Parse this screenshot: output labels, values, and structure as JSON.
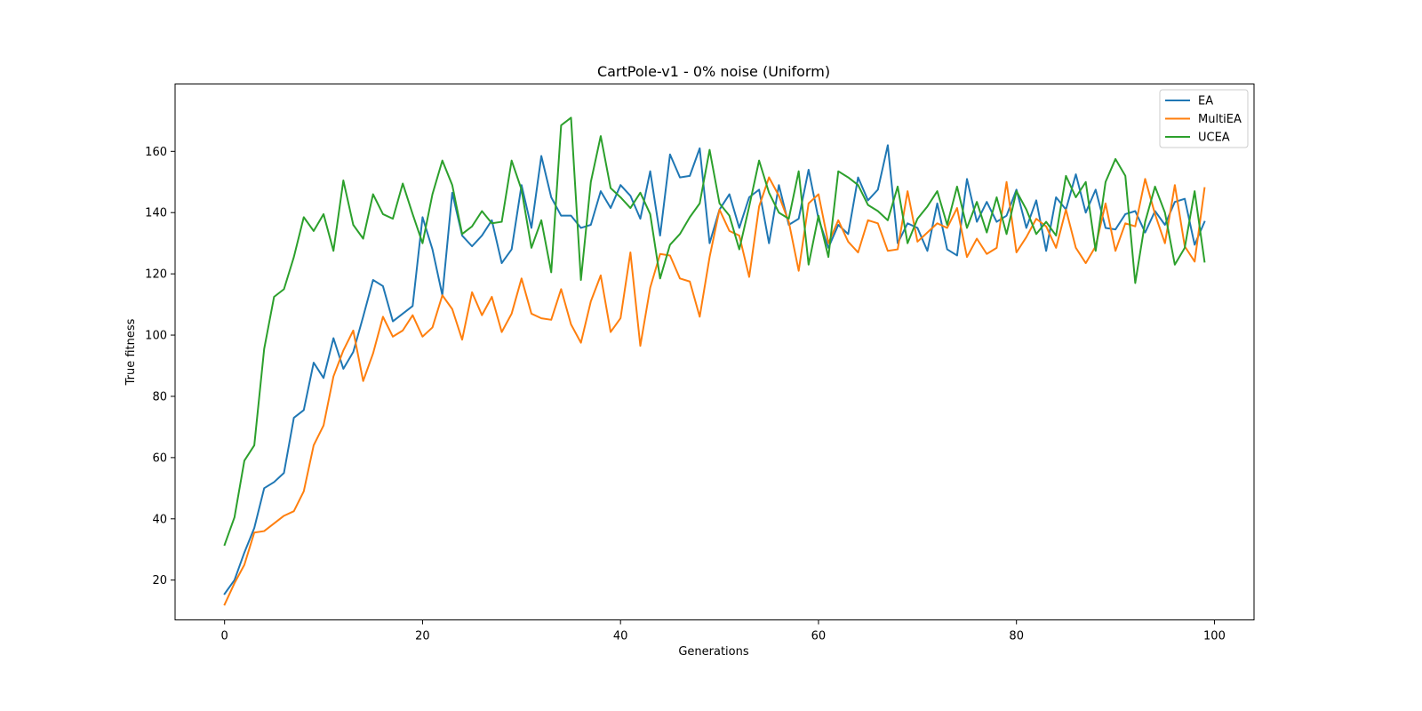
{
  "chart_data": {
    "type": "line",
    "title": "CartPole-v1 - 0% noise (Uniform)",
    "xlabel": "Generations",
    "ylabel": "True fitness",
    "xlim": [
      -5,
      104
    ],
    "ylim": [
      7,
      182
    ],
    "xticks": [
      0,
      20,
      40,
      60,
      80,
      100
    ],
    "yticks": [
      20,
      40,
      60,
      80,
      100,
      120,
      140,
      160
    ],
    "grid": false,
    "legend_position": "top-right",
    "series": [
      {
        "name": "EA",
        "color": "#1f77b4",
        "values": [
          15.5,
          20,
          29,
          37,
          50,
          52,
          55,
          73,
          75.5,
          91,
          86,
          99,
          89,
          94.5,
          106,
          118,
          116,
          104.5,
          107,
          109.5,
          138.5,
          128,
          113,
          146.5,
          132.5,
          129,
          132.5,
          137.5,
          123.5,
          128,
          149,
          135,
          158.5,
          145,
          139,
          139,
          135,
          136,
          147,
          141.5,
          149,
          145.5,
          138,
          153.5,
          132.5,
          159,
          151.5,
          152,
          161,
          130,
          141,
          146,
          135,
          145,
          147.5,
          130,
          149,
          136,
          138,
          154,
          138,
          128.5,
          136,
          133,
          151.5,
          144,
          147.5,
          162,
          130,
          136.5,
          135,
          127.5,
          143,
          128,
          126,
          151,
          137,
          143.5,
          137,
          139,
          147.5,
          135,
          144,
          127.5,
          145,
          141,
          152.5,
          140,
          147.5,
          135,
          134.5,
          139.5,
          140.5,
          133.5,
          140.5,
          136,
          143.5,
          144.5,
          129.5,
          137
        ]
      },
      {
        "name": "MultiEA",
        "color": "#ff7f0e",
        "values": [
          12,
          19,
          25,
          35.5,
          36,
          38.5,
          41,
          42.5,
          49,
          64,
          70.5,
          86.5,
          95,
          101.5,
          85,
          94,
          106,
          99.5,
          101.5,
          106.5,
          99.5,
          102.5,
          113,
          108.5,
          98.5,
          114,
          106.5,
          112.5,
          101,
          107,
          118.5,
          107,
          105.5,
          105,
          115,
          103.5,
          97.5,
          111,
          119.5,
          101,
          105.5,
          127,
          96.5,
          115.5,
          126.5,
          126,
          118.5,
          117.5,
          106,
          125.5,
          141,
          134,
          132.5,
          119,
          142,
          151.5,
          145.5,
          137,
          121,
          143,
          146,
          130,
          137.5,
          130.5,
          127,
          137.5,
          136.5,
          127.5,
          128,
          147,
          130.5,
          133.5,
          136.5,
          135,
          141.5,
          125.5,
          131.5,
          126.5,
          128.5,
          150,
          127,
          132,
          138,
          135.5,
          128.5,
          141,
          128.5,
          123.5,
          129,
          143,
          127.5,
          136.5,
          135.5,
          151,
          139.5,
          130,
          149,
          129,
          124,
          148
        ]
      },
      {
        "name": "UCEA",
        "color": "#2ca02c",
        "values": [
          31.5,
          40.5,
          59,
          64,
          95.5,
          112.5,
          115,
          125.5,
          138.5,
          134,
          139.5,
          127.5,
          150.5,
          136,
          131.5,
          146,
          139.5,
          138,
          149.5,
          139.5,
          130,
          146,
          157,
          149,
          133,
          135.5,
          140.5,
          136.5,
          137,
          157,
          147.5,
          128.5,
          137.5,
          120.5,
          168.5,
          171,
          118,
          150,
          165,
          148,
          145,
          141.5,
          146.5,
          139.5,
          118.5,
          129.5,
          133,
          138.5,
          143,
          160.5,
          143,
          139,
          128,
          142,
          157,
          146.5,
          140,
          138,
          153.5,
          123,
          139,
          125.5,
          153.5,
          151.5,
          149,
          142.5,
          140.5,
          137.5,
          148.5,
          130,
          138,
          142,
          147,
          136,
          148.5,
          135,
          143.5,
          133.5,
          145,
          133,
          147,
          141,
          133,
          137,
          132.5,
          152,
          145,
          150,
          127.5,
          150,
          157.5,
          152,
          117,
          137,
          148.5,
          140,
          123,
          128.5,
          147,
          124
        ]
      }
    ]
  }
}
